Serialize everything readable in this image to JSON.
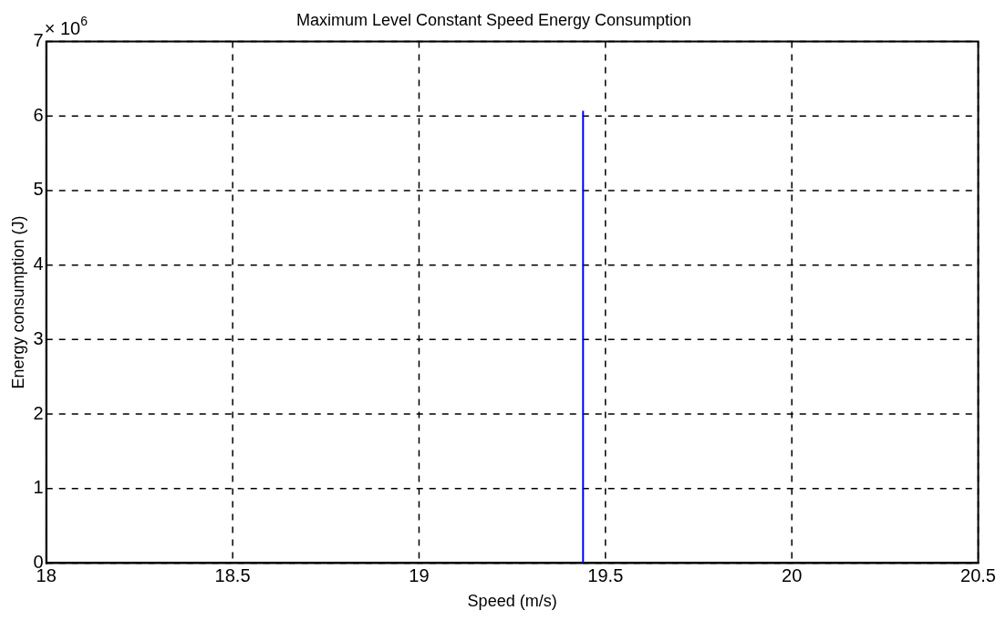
{
  "chart_data": {
    "type": "line",
    "title": "Maximum Level Constant Speed Energy Consumption",
    "xlabel": "Speed (m/s)",
    "ylabel": "Energy consumption (J)",
    "annotations": [
      "× 10$^{6}$"
    ],
    "series": [
      {
        "color": "#0000ff",
        "x": [
          19.44,
          19.44
        ],
        "values": [
          0,
          6.07
        ]
      }
    ],
    "xlim": [
      18,
      20.5
    ],
    "xticks": [
      18,
      18.5,
      19,
      19.5,
      20,
      20.5
    ],
    "ylim": [
      0,
      7
    ],
    "yticks": [
      0,
      1,
      2,
      3,
      4,
      5,
      6,
      7
    ],
    "grid": true,
    "legend": false,
    "marker": "none",
    "line_style": "solid"
  }
}
